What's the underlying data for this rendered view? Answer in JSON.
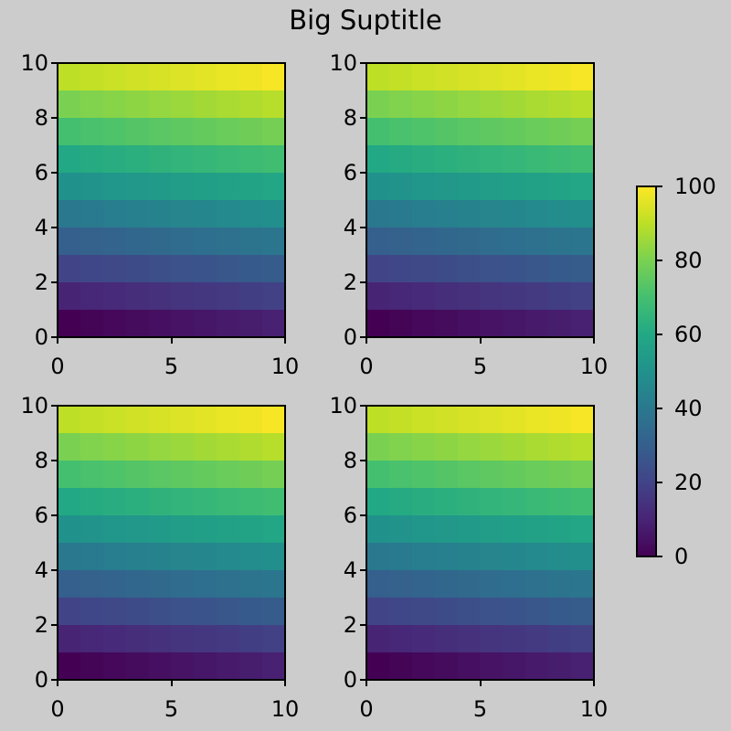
{
  "chart_data": {
    "type": "heatmap",
    "title": "Big Suptitle",
    "layout": "2x2 subplots with shared colorbar",
    "colormap": "viridis",
    "subplots": [
      {
        "id": "top-left",
        "xlim": [
          0,
          10
        ],
        "ylim": [
          0,
          10
        ],
        "xticks": [
          "0",
          "5",
          "10"
        ],
        "yticks": [
          "0",
          "2",
          "4",
          "6",
          "8",
          "10"
        ]
      },
      {
        "id": "top-right",
        "xlim": [
          0,
          10
        ],
        "ylim": [
          0,
          10
        ],
        "xticks": [
          "0",
          "5",
          "10"
        ],
        "yticks": [
          "0",
          "2",
          "4",
          "6",
          "8",
          "10"
        ]
      },
      {
        "id": "bottom-left",
        "xlim": [
          0,
          10
        ],
        "ylim": [
          0,
          10
        ],
        "xticks": [
          "0",
          "5",
          "10"
        ],
        "yticks": [
          "0",
          "2",
          "4",
          "6",
          "8",
          "10"
        ]
      },
      {
        "id": "bottom-right",
        "xlim": [
          0,
          10
        ],
        "ylim": [
          0,
          10
        ],
        "xticks": [
          "0",
          "5",
          "10"
        ],
        "yticks": [
          "0",
          "2",
          "4",
          "6",
          "8",
          "10"
        ]
      }
    ],
    "z_description": "10x10 grid, value = 10*row + col (row from bottom), identical in all four panels",
    "z": [
      [
        0,
        1,
        2,
        3,
        4,
        5,
        6,
        7,
        8,
        9
      ],
      [
        10,
        11,
        12,
        13,
        14,
        15,
        16,
        17,
        18,
        19
      ],
      [
        20,
        21,
        22,
        23,
        24,
        25,
        26,
        27,
        28,
        29
      ],
      [
        30,
        31,
        32,
        33,
        34,
        35,
        36,
        37,
        38,
        39
      ],
      [
        40,
        41,
        42,
        43,
        44,
        45,
        46,
        47,
        48,
        49
      ],
      [
        50,
        51,
        52,
        53,
        54,
        55,
        56,
        57,
        58,
        59
      ],
      [
        60,
        61,
        62,
        63,
        64,
        65,
        66,
        67,
        68,
        69
      ],
      [
        70,
        71,
        72,
        73,
        74,
        75,
        76,
        77,
        78,
        79
      ],
      [
        80,
        81,
        82,
        83,
        84,
        85,
        86,
        87,
        88,
        89
      ],
      [
        90,
        91,
        92,
        93,
        94,
        95,
        96,
        97,
        98,
        99
      ]
    ],
    "colorbar": {
      "vmin": 0,
      "vmax": 100,
      "ticks": [
        "0",
        "20",
        "40",
        "60",
        "80",
        "100"
      ]
    },
    "background_color": "#cccccc"
  }
}
